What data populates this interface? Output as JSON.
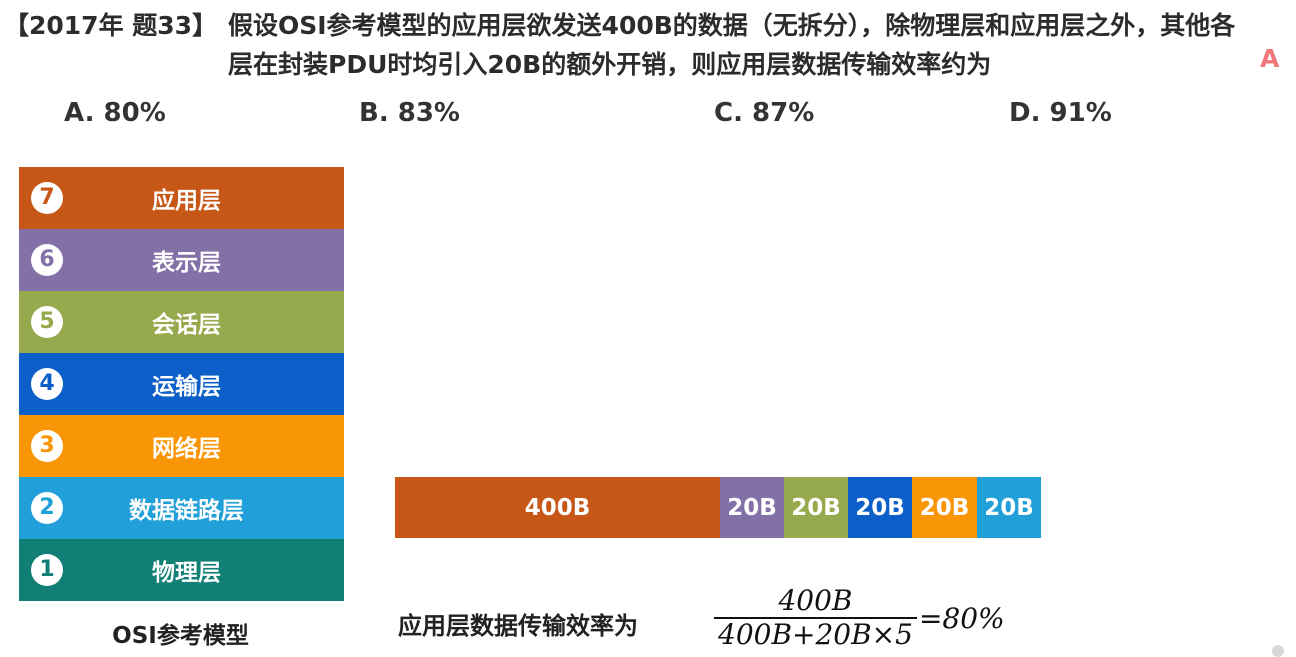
{
  "question": {
    "source": "【2017年 题33】",
    "text": "假设OSI参考模型的应用层欲发送400B的数据（无拆分），除物理层和应用层之外，其他各层在封装PDU时均引入20B的额外开销，则应用层数据传输效率约为",
    "answer": "A"
  },
  "options": [
    {
      "label": "A. 80%"
    },
    {
      "label": "B. 83%"
    },
    {
      "label": "C. 87%"
    },
    {
      "label": "D. 91%"
    }
  ],
  "osi_model": {
    "caption": "OSI参考模型",
    "layers": [
      {
        "num": "7",
        "name": "应用层",
        "color": "#c75716"
      },
      {
        "num": "6",
        "name": "表示层",
        "color": "#8270a6"
      },
      {
        "num": "5",
        "name": "会话层",
        "color": "#97a94d"
      },
      {
        "num": "4",
        "name": "运输层",
        "color": "#0c5fc8"
      },
      {
        "num": "3",
        "name": "网络层",
        "color": "#f99607"
      },
      {
        "num": "2",
        "name": "数据链路层",
        "color": "#219fd9"
      },
      {
        "num": "1",
        "name": "物理层",
        "color": "#117f76"
      }
    ]
  },
  "pdu_bar": {
    "segments": [
      {
        "label": "400B",
        "color": "#c75716"
      },
      {
        "label": "20B",
        "color": "#8270a6"
      },
      {
        "label": "20B",
        "color": "#97a94d"
      },
      {
        "label": "20B",
        "color": "#0c5fc8"
      },
      {
        "label": "20B",
        "color": "#f99607"
      },
      {
        "label": "20B",
        "color": "#219fd9"
      }
    ]
  },
  "formula": {
    "label": "应用层数据传输效率为",
    "numerator": "400B",
    "denominator": "400B+20B×5",
    "result": "=80%"
  }
}
